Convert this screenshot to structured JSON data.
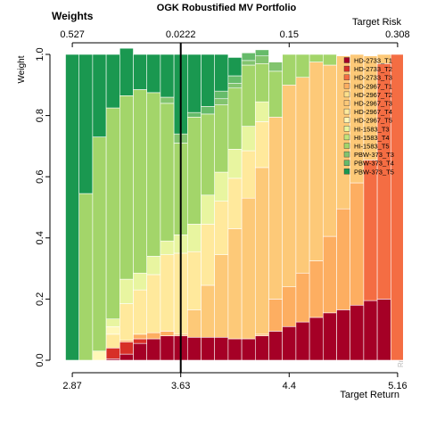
{
  "chart_data": {
    "type": "bar",
    "title": "OGK Robustified MV Portfolio",
    "corner_title": "Weights",
    "ylabel": "Weight",
    "xlabel": "Target Return",
    "top_axis_label": "Target Risk",
    "watermark": "Rmetrics",
    "ylim": [
      0,
      1
    ],
    "yticks": [
      "0.0",
      "0.2",
      "0.4",
      "0.6",
      "0.8",
      "1.0"
    ],
    "bottom_ticks": [
      {
        "bar": 1,
        "label": "2.87"
      },
      {
        "bar": 9,
        "label": "3.63"
      },
      {
        "bar": 17,
        "label": "4.4"
      },
      {
        "bar": 25,
        "label": "5.16"
      }
    ],
    "top_ticks": [
      {
        "bar": 1,
        "label": "0.527"
      },
      {
        "bar": 9,
        "label": "0.0222"
      },
      {
        "bar": 17,
        "label": "0.15"
      },
      {
        "bar": 25,
        "label": "0.308"
      }
    ],
    "vertical_line_bar": 9,
    "legend_position": "right",
    "series": [
      {
        "name": "HD-2733_T1",
        "color": "#A50026",
        "values": [
          0,
          0,
          0,
          0.005,
          0.02,
          0.055,
          0.07,
          0.08,
          0.08,
          0.075,
          0.075,
          0.075,
          0.07,
          0.07,
          0.08,
          0.095,
          0.11,
          0.125,
          0.14,
          0.155,
          0.165,
          0.18,
          0.195,
          0.2,
          0
        ]
      },
      {
        "name": "HD-2733_T2",
        "color": "#D73027",
        "values": [
          0,
          0,
          0,
          0.035,
          0.04,
          0.015,
          0,
          0,
          0,
          0,
          0,
          0,
          0,
          0,
          0,
          0,
          0,
          0,
          0,
          0,
          0,
          0,
          0,
          0,
          0
        ]
      },
      {
        "name": "HD-2733_T3",
        "color": "#F46D43",
        "values": [
          0,
          0,
          0,
          0,
          0,
          0,
          0,
          0,
          0,
          0,
          0,
          0,
          0,
          0,
          0,
          0,
          0,
          0,
          0,
          0,
          0,
          0,
          0.46,
          0.77,
          1.0
        ]
      },
      {
        "name": "HD-2967_T1",
        "color": "#FDAE61",
        "values": [
          0,
          0,
          0,
          0,
          0.005,
          0.015,
          0.02,
          0.015,
          0.005,
          0,
          0,
          0,
          0,
          0,
          0.005,
          0.105,
          0.13,
          0.16,
          0.185,
          0.25,
          0.33,
          0.4,
          0,
          0,
          0
        ]
      },
      {
        "name": "HD-2967_T2",
        "color": "#FEE08B",
        "values": [
          0,
          0,
          0,
          0,
          0,
          0,
          0,
          0,
          0,
          0,
          0,
          0,
          0,
          0,
          0,
          0,
          0,
          0,
          0,
          0,
          0,
          0,
          0,
          0,
          0
        ]
      },
      {
        "name": "HD-2967_T3",
        "color": "#FDC978",
        "values": [
          0,
          0,
          0,
          0,
          0,
          0,
          0,
          0,
          0,
          0.09,
          0.17,
          0.27,
          0.36,
          0.46,
          0.545,
          0.595,
          0.66,
          0.64,
          0.65,
          0.56,
          0.5,
          0.42,
          0.34,
          0.03,
          0
        ]
      },
      {
        "name": "HD-2967_T4",
        "color": "#FFE99C",
        "values": [
          0,
          0,
          0,
          0.045,
          0.12,
          0.145,
          0.19,
          0.25,
          0.265,
          0.19,
          0.2,
          0.175,
          0.165,
          0.155,
          0.15,
          0,
          0,
          0,
          0,
          0,
          0,
          0,
          0,
          0,
          0
        ]
      },
      {
        "name": "HD-2967_T5",
        "color": "#FFF7B8",
        "values": [
          0,
          0,
          0.03,
          0.025,
          0,
          0,
          0,
          0,
          0,
          0,
          0,
          0,
          0,
          0,
          0,
          0,
          0,
          0,
          0,
          0,
          0,
          0,
          0,
          0,
          0
        ]
      },
      {
        "name": "HI-1583_T3",
        "color": "#E8F5A0",
        "values": [
          0,
          0,
          0,
          0.025,
          0.08,
          0.055,
          0.06,
          0.045,
          0.06,
          0.09,
          0.095,
          0.095,
          0.095,
          0.08,
          0.065,
          0,
          0,
          0,
          0,
          0,
          0,
          0,
          0,
          0,
          0
        ]
      },
      {
        "name": "HI-1583_T4",
        "color": "#C2E47C",
        "values": [
          0,
          0,
          0,
          0,
          0,
          0,
          0,
          0,
          0,
          0,
          0,
          0,
          0,
          0,
          0,
          0,
          0,
          0,
          0,
          0,
          0,
          0,
          0,
          0,
          0
        ]
      },
      {
        "name": "HI-1583_T5",
        "color": "#A3D56A",
        "values": [
          0,
          0.545,
          0.7,
          0.69,
          0.6,
          0.6,
          0.535,
          0.45,
          0.3,
          0.35,
          0.265,
          0.22,
          0.2,
          0.2,
          0.125,
          0.15,
          0.1,
          0.075,
          0.025,
          0.035,
          0,
          0,
          0,
          0,
          0
        ]
      },
      {
        "name": "PBW-373_T3",
        "color": "#82C46E",
        "values": [
          0,
          0,
          0,
          0,
          0,
          0,
          0,
          0.02,
          0.03,
          0,
          0,
          0.02,
          0.015,
          0.015,
          0.025,
          0.03,
          0,
          0,
          0,
          0,
          0,
          0,
          0,
          0,
          0
        ]
      },
      {
        "name": "PBW-373_T4",
        "color": "#66BB6A",
        "values": [
          0,
          0,
          0,
          0,
          0,
          0,
          0,
          0,
          0,
          0.015,
          0.025,
          0.025,
          0.025,
          0.025,
          0.02,
          0,
          0,
          0,
          0,
          0,
          0,
          0,
          0,
          0,
          0
        ]
      },
      {
        "name": "PBW-373_T5",
        "color": "#1A9850",
        "values": [
          1.0,
          0.455,
          0.27,
          0.175,
          0.155,
          0.115,
          0.125,
          0.14,
          0.26,
          0.19,
          0.17,
          0.12,
          0.06,
          0,
          0,
          0,
          0,
          0,
          0,
          0,
          0,
          0,
          0,
          0,
          0
        ]
      }
    ]
  }
}
